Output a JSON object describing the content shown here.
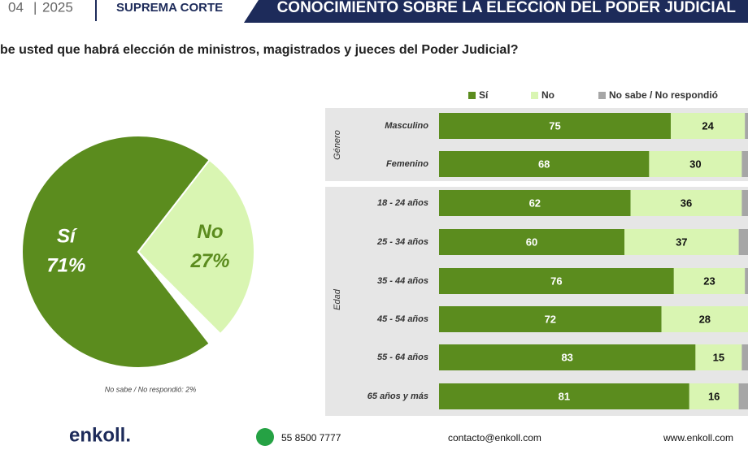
{
  "header": {
    "month": "04",
    "year": "2025",
    "section": "SUPREMA CORTE",
    "banner": "CONOCIMIENTO SOBRE LA ELECCIÓN DEL PODER JUDICIAL",
    "question": "be usted que habrá elección de ministros, magistrados y jueces del Poder Judicial?"
  },
  "chart_data": [
    {
      "type": "pie",
      "categories": [
        "Sí",
        "No"
      ],
      "values": [
        71,
        27
      ],
      "value_labels": [
        "71%",
        "27%"
      ],
      "colors": [
        "#5b8c1e",
        "#d9f5b2"
      ],
      "note": "No sabe / No respondió: 2%"
    },
    {
      "type": "stacked-bar",
      "orientation": "horizontal",
      "xlim": [
        0,
        100
      ],
      "categories": [
        "Masculino",
        "Femenino",
        "18 - 24 años",
        "25 - 34 años",
        "35 - 44 años",
        "45 - 54 años",
        "55 - 64 años",
        "65  años y más"
      ],
      "groups": [
        {
          "label": "Género",
          "count": 2
        },
        {
          "label": "Edad",
          "count": 6
        }
      ],
      "series": [
        {
          "name": "Sí",
          "color": "#5b8c1e",
          "values": [
            75,
            68,
            62,
            60,
            76,
            72,
            83,
            81
          ]
        },
        {
          "name": "No",
          "color": "#d9f5b2",
          "values": [
            24,
            30,
            36,
            37,
            23,
            28,
            15,
            16
          ]
        },
        {
          "name": "No sabe / No respondió",
          "color": "#a6a6a6",
          "values": [
            1,
            2,
            2,
            3,
            1,
            0,
            2,
            3
          ]
        }
      ]
    }
  ],
  "footer": {
    "brand": "enkoll.",
    "phone": "55 8500 7777",
    "email": "contacto@enkoll.com",
    "web": "www.enkoll.com"
  }
}
